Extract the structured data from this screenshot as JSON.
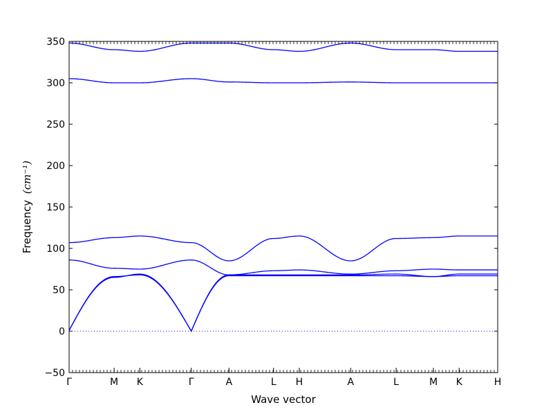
{
  "chart_data": {
    "type": "line",
    "xlabel": "Wave vector",
    "ylabel": "Frequency",
    "ylabel_unit": "(cm⁻¹)",
    "ylim": [
      -50,
      350
    ],
    "yticks": [
      -50,
      0,
      50,
      100,
      150,
      200,
      250,
      300,
      350
    ],
    "grid": false,
    "legend": "none",
    "line_color": "#0000ff",
    "zero_line_style": "dotted",
    "xticks": [
      {
        "label": "Γ",
        "x": 0.0
      },
      {
        "label": "M",
        "x": 0.105
      },
      {
        "label": "K",
        "x": 0.165
      },
      {
        "label": "Γ",
        "x": 0.285
      },
      {
        "label": "A",
        "x": 0.373
      },
      {
        "label": "L",
        "x": 0.477
      },
      {
        "label": "H",
        "x": 0.537
      },
      {
        "label": "A",
        "x": 0.657
      },
      {
        "label": "L",
        "x": 0.763
      },
      {
        "label": "M",
        "x": 0.85
      },
      {
        "label": "K",
        "x": 0.91
      },
      {
        "label": "H",
        "x": 1.0
      }
    ],
    "series": [
      {
        "values": [
          [
            0.0,
            1
          ],
          [
            0.105,
            65
          ],
          [
            0.165,
            69
          ],
          [
            0.285,
            0
          ],
          [
            0.373,
            67
          ],
          [
            0.477,
            67
          ],
          [
            0.537,
            67
          ],
          [
            0.657,
            67
          ],
          [
            0.763,
            67
          ],
          [
            0.85,
            66
          ],
          [
            0.91,
            67
          ],
          [
            1.0,
            67
          ]
        ]
      },
      {
        "values": [
          [
            0.0,
            1
          ],
          [
            0.105,
            66
          ],
          [
            0.165,
            68
          ],
          [
            0.285,
            0
          ],
          [
            0.373,
            68
          ],
          [
            0.477,
            68
          ],
          [
            0.537,
            68
          ],
          [
            0.657,
            68
          ],
          [
            0.763,
            69
          ],
          [
            0.85,
            66
          ],
          [
            0.91,
            69
          ],
          [
            1.0,
            69
          ]
        ]
      },
      {
        "values": [
          [
            0.0,
            86
          ],
          [
            0.105,
            76
          ],
          [
            0.165,
            75
          ],
          [
            0.285,
            86
          ],
          [
            0.373,
            68
          ],
          [
            0.477,
            73
          ],
          [
            0.537,
            74
          ],
          [
            0.657,
            69
          ],
          [
            0.763,
            73
          ],
          [
            0.85,
            75
          ],
          [
            0.91,
            74
          ],
          [
            1.0,
            74
          ]
        ]
      },
      {
        "values": [
          [
            0.0,
            107
          ],
          [
            0.105,
            113
          ],
          [
            0.165,
            115
          ],
          [
            0.285,
            107
          ],
          [
            0.373,
            85
          ],
          [
            0.477,
            112
          ],
          [
            0.537,
            115
          ],
          [
            0.657,
            85
          ],
          [
            0.763,
            112
          ],
          [
            0.85,
            113
          ],
          [
            0.91,
            115
          ],
          [
            1.0,
            115
          ]
        ]
      },
      {
        "values": [
          [
            0.0,
            305
          ],
          [
            0.105,
            300
          ],
          [
            0.165,
            300
          ],
          [
            0.285,
            305
          ],
          [
            0.373,
            301
          ],
          [
            0.477,
            300
          ],
          [
            0.537,
            300
          ],
          [
            0.657,
            301
          ],
          [
            0.763,
            300
          ],
          [
            0.85,
            300
          ],
          [
            0.91,
            300
          ],
          [
            1.0,
            300
          ]
        ]
      },
      {
        "values": [
          [
            0.0,
            348
          ],
          [
            0.105,
            340
          ],
          [
            0.165,
            338
          ],
          [
            0.285,
            348
          ],
          [
            0.373,
            348
          ],
          [
            0.477,
            340
          ],
          [
            0.537,
            338
          ],
          [
            0.657,
            348
          ],
          [
            0.763,
            340
          ],
          [
            0.85,
            340
          ],
          [
            0.91,
            338
          ],
          [
            1.0,
            338
          ]
        ]
      }
    ]
  }
}
